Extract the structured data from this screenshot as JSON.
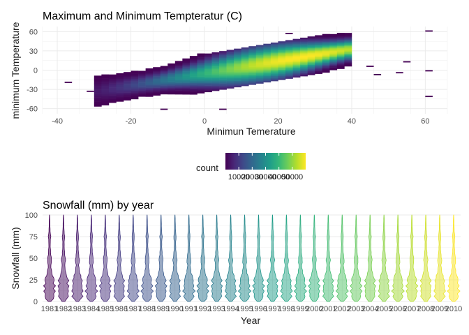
{
  "chart_data": [
    {
      "type": "heatmap",
      "title": "Maximum and Minimum Tempteratur (C)",
      "xlabel": "Minimun Temerature",
      "ylabel": "minimum Temperature",
      "xlim": [
        -44,
        66
      ],
      "ylim": [
        -68,
        68
      ],
      "xticks": [
        -40,
        -20,
        0,
        20,
        40,
        60
      ],
      "yticks": [
        -60,
        -30,
        0,
        30,
        60
      ],
      "grid": true,
      "bin_width": 2,
      "band": {
        "core_slope": 0.95,
        "core_intercept": -5,
        "xmin": -30,
        "xmax": 40,
        "peak_x": 26,
        "peak_count": 60000
      },
      "outliers": [
        {
          "x": -38,
          "y": -20
        },
        {
          "x": -32,
          "y": -34
        },
        {
          "x": -12,
          "y": -62
        },
        {
          "x": 4,
          "y": -62
        },
        {
          "x": 22,
          "y": 56
        },
        {
          "x": 44,
          "y": 5
        },
        {
          "x": 46,
          "y": -8
        },
        {
          "x": 54,
          "y": 12
        },
        {
          "x": 52,
          "y": -5
        },
        {
          "x": 60,
          "y": 60
        },
        {
          "x": 60,
          "y": -2
        },
        {
          "x": 60,
          "y": -42
        }
      ],
      "legend": {
        "title": "count",
        "ticks": [
          10000,
          20000,
          30000,
          40000,
          50000
        ],
        "tick_labels": [
          "10000",
          "20000",
          "30000",
          "40000",
          "50000"
        ],
        "min": 1,
        "max": 60000
      },
      "colormap": [
        "#440154",
        "#482878",
        "#3e4a89",
        "#31688e",
        "#26828e",
        "#1f9e89",
        "#35b779",
        "#6ece58",
        "#b5de2b",
        "#fde725"
      ]
    },
    {
      "type": "violin",
      "title": "Snowfall (mm) by year",
      "xlabel": "Year",
      "ylabel": "Snowfall (mm)",
      "categories": [
        "1981",
        "1982",
        "1983",
        "1984",
        "1985",
        "1986",
        "1987",
        "1988",
        "1989",
        "1990",
        "1991",
        "1992",
        "1993",
        "1994",
        "1995",
        "1996",
        "1997",
        "1998",
        "1999",
        "2000",
        "2001",
        "2002",
        "2003",
        "2004",
        "2005",
        "2006",
        "2007",
        "2008",
        "2009",
        "2010"
      ],
      "ylim": [
        0,
        100
      ],
      "yticks": [
        0,
        25,
        50,
        75,
        100
      ],
      "grid": true,
      "density_profile": [
        {
          "y": 0,
          "width": 0.2
        },
        {
          "y": 3,
          "width": 0.55
        },
        {
          "y": 6,
          "width": 0.8
        },
        {
          "y": 9,
          "width": 0.62
        },
        {
          "y": 12,
          "width": 0.9
        },
        {
          "y": 15,
          "width": 0.66
        },
        {
          "y": 18,
          "width": 0.86
        },
        {
          "y": 21,
          "width": 0.58
        },
        {
          "y": 24,
          "width": 0.78
        },
        {
          "y": 27,
          "width": 0.62
        },
        {
          "y": 30,
          "width": 0.5
        },
        {
          "y": 33,
          "width": 0.36
        },
        {
          "y": 36,
          "width": 0.3
        },
        {
          "y": 39,
          "width": 0.24
        },
        {
          "y": 42,
          "width": 0.2
        },
        {
          "y": 45,
          "width": 0.28
        },
        {
          "y": 48,
          "width": 0.32
        },
        {
          "y": 51,
          "width": 0.26
        },
        {
          "y": 54,
          "width": 0.2
        },
        {
          "y": 57,
          "width": 0.17
        },
        {
          "y": 60,
          "width": 0.14
        },
        {
          "y": 63,
          "width": 0.12
        },
        {
          "y": 66,
          "width": 0.11
        },
        {
          "y": 69,
          "width": 0.12
        },
        {
          "y": 72,
          "width": 0.15
        },
        {
          "y": 75,
          "width": 0.19
        },
        {
          "y": 78,
          "width": 0.14
        },
        {
          "y": 81,
          "width": 0.1
        },
        {
          "y": 84,
          "width": 0.08
        },
        {
          "y": 87,
          "width": 0.07
        },
        {
          "y": 90,
          "width": 0.06
        },
        {
          "y": 93,
          "width": 0.05
        },
        {
          "y": 96,
          "width": 0.04
        },
        {
          "y": 99,
          "width": 0.02
        },
        {
          "y": 100,
          "width": 0.01
        }
      ],
      "fill_colormap": [
        "#440154",
        "#482878",
        "#3e4a89",
        "#31688e",
        "#26828e",
        "#1f9e89",
        "#35b779",
        "#6ece58",
        "#b5de2b",
        "#fde725"
      ],
      "fill_opacity": 0.5
    }
  ]
}
